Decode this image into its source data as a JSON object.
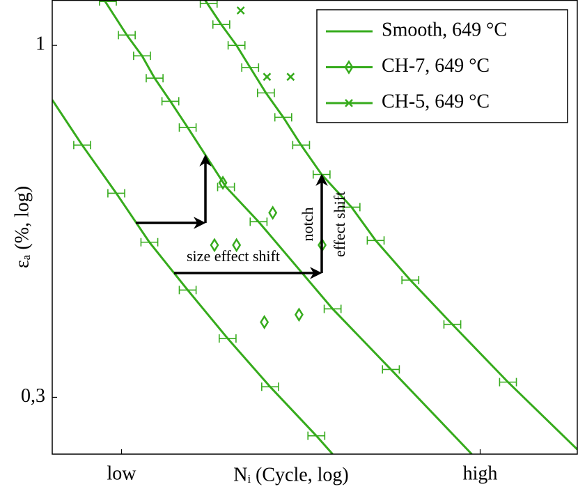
{
  "chart_data": {
    "type": "line",
    "y_label": "εₐ (%, log)",
    "x_label": "Nᵢ (Cycle, log)",
    "ylog": true,
    "xlim": [
      0,
      10
    ],
    "ylim": [
      0.247,
      1.168
    ],
    "xticks": [
      {
        "value": 1.32,
        "label": "low"
      },
      {
        "value": 8.15,
        "label": "high"
      }
    ],
    "yticks": [
      1,
      {
        "value": 0.3,
        "label": "0,3"
      }
    ],
    "legend": "top-right",
    "annotations": [
      "size effect shift",
      "notch",
      "effect shift"
    ],
    "series": [
      {
        "name": "Smooth, 649 °C",
        "color": "#36ab1c",
        "marker": "none",
        "xerr": 0.16,
        "curves": [
          {
            "x": [
              0,
              0.57,
              1.22,
              1.85,
              2.58,
              3.34,
              4.15,
              5.03,
              5.34
            ],
            "y": [
              0.83,
              0.711,
              0.603,
              0.51,
              0.433,
              0.367,
              0.311,
              0.263,
              0.247
            ],
            "marker_x": [
              0.57,
              1.22,
              1.85,
              2.58,
              3.34,
              4.15,
              5.03
            ],
            "marker_y": [
              0.711,
              0.603,
              0.51,
              0.433,
              0.367,
              0.311,
              0.263
            ]
          },
          {
            "x": [
              0.99,
              1.42,
              1.71,
              1.95,
              2.25,
              2.58,
              3.31,
              3.93,
              5.34,
              6.45,
              7.99
            ],
            "y": [
              1.168,
              1.036,
              0.965,
              0.894,
              0.826,
              0.755,
              0.616,
              0.547,
              0.406,
              0.33,
              0.247
            ],
            "marker_x": [
              1.06,
              1.42,
              1.71,
              1.95,
              2.25,
              2.58,
              3.31,
              3.93,
              5.34,
              6.45
            ],
            "marker_y": [
              1.162,
              1.036,
              0.965,
              0.894,
              0.826,
              0.755,
              0.616,
              0.547,
              0.406,
              0.33
            ]
          },
          {
            "x": [
              2.91,
              3.22,
              3.51,
              3.77,
              4.07,
              4.4,
              4.74,
              5.13,
              5.7,
              6.16,
              6.82,
              7.62,
              8.68,
              10
            ],
            "y": [
              1.168,
              1.074,
              1.0,
              0.927,
              0.85,
              0.782,
              0.711,
              0.643,
              0.575,
              0.513,
              0.448,
              0.385,
              0.316,
              0.251
            ],
            "marker_x": [
              2.98,
              3.22,
              3.51,
              3.77,
              4.07,
              4.4,
              4.74,
              5.13,
              5.7,
              6.16,
              6.82,
              7.62,
              8.68
            ],
            "marker_y": [
              1.154,
              1.074,
              1.0,
              0.927,
              0.85,
              0.782,
              0.711,
              0.643,
              0.575,
              0.513,
              0.448,
              0.385,
              0.316
            ]
          }
        ]
      },
      {
        "name": "CH-7, 649 °C",
        "color": "#36ab1c",
        "marker": "diamond",
        "x": [
          3.25,
          3.09,
          3.51,
          4.2,
          5.14,
          4.04,
          4.7
        ],
        "y": [
          0.625,
          0.505,
          0.505,
          0.564,
          0.505,
          0.388,
          0.398
        ]
      },
      {
        "name": "CH-5, 649 °C",
        "color": "#36ab1c",
        "marker": "x",
        "x": [
          3.59,
          4.09,
          4.54
        ],
        "y": [
          1.127,
          0.898,
          0.898
        ]
      }
    ]
  }
}
